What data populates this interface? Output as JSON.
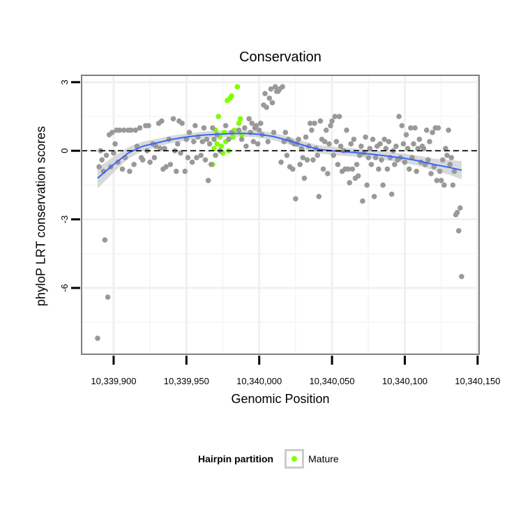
{
  "chart_data": {
    "type": "scatter",
    "title": "Conservation",
    "xlabel": "Genomic Position",
    "ylabel": "phyloP LRT conservation scores",
    "x_ticks": [
      10339900,
      10339950,
      10340000,
      10340050,
      10340100,
      10340150
    ],
    "x_tick_labels": [
      "10,339,900",
      "10,339,950",
      "10,340,000",
      "10,340,050",
      "10,340,100",
      "10,340,150"
    ],
    "y_ticks": [
      -6,
      -3,
      0,
      3
    ],
    "y_tick_labels": [
      "-6",
      "-3",
      "0",
      "3"
    ],
    "xlim": [
      10339878,
      10340151
    ],
    "ylim": [
      -8.9,
      3.3
    ],
    "grid": true,
    "reference_line": {
      "y": 0,
      "style": "dashed",
      "color": "#000000"
    },
    "legend": {
      "title": "Hairpin partition",
      "position": "bottom",
      "entries": [
        {
          "label": "Mature",
          "color": "#7fff00"
        }
      ]
    },
    "series": [
      {
        "name": "Mature",
        "color": "#7fff00",
        "points": [
          [
            10339970,
            0.9
          ],
          [
            10339972,
            1.5
          ],
          [
            10339973,
            0.6
          ],
          [
            10339971,
            0.3
          ],
          [
            10339969,
            0.1
          ],
          [
            10339968,
            -0.6
          ],
          [
            10339974,
            0.2
          ],
          [
            10339975,
            -0.1
          ],
          [
            10339976,
            0.8
          ],
          [
            10339977,
            0.4
          ],
          [
            10339978,
            2.2
          ],
          [
            10339979,
            0.0
          ],
          [
            10339980,
            2.3
          ],
          [
            10339981,
            2.4
          ],
          [
            10339982,
            0.6
          ],
          [
            10339983,
            0.9
          ],
          [
            10339985,
            2.8
          ],
          [
            10339986,
            1.2
          ],
          [
            10339987,
            1.4
          ],
          [
            10339988,
            0.7
          ]
        ]
      },
      {
        "name": "",
        "color": "#999999",
        "points": [
          [
            10339889,
            -8.2
          ],
          [
            10339890,
            -0.7
          ],
          [
            10339891,
            0.0
          ],
          [
            10339892,
            -0.4
          ],
          [
            10339893,
            -0.9
          ],
          [
            10339894,
            -3.9
          ],
          [
            10339895,
            -0.2
          ],
          [
            10339896,
            -6.4
          ],
          [
            10339897,
            0.7
          ],
          [
            10339898,
            -0.7
          ],
          [
            10339899,
            0.8
          ],
          [
            10339900,
            -0.1
          ],
          [
            10339901,
            0.3
          ],
          [
            10339902,
            0.9
          ],
          [
            10339903,
            -0.5
          ],
          [
            10339904,
            0.9
          ],
          [
            10339906,
            -0.8
          ],
          [
            10339907,
            0.9
          ],
          [
            10339908,
            -0.3
          ],
          [
            10339910,
            0.9
          ],
          [
            10339911,
            -0.9
          ],
          [
            10339912,
            0.9
          ],
          [
            10339914,
            -0.6
          ],
          [
            10339915,
            0.9
          ],
          [
            10339916,
            0.2
          ],
          [
            10339918,
            1.0
          ],
          [
            10339919,
            -0.3
          ],
          [
            10339920,
            -0.4
          ],
          [
            10339922,
            1.1
          ],
          [
            10339923,
            0.0
          ],
          [
            10339924,
            1.1
          ],
          [
            10339925,
            -0.5
          ],
          [
            10339927,
            0.3
          ],
          [
            10339928,
            -0.3
          ],
          [
            10339929,
            0.2
          ],
          [
            10339931,
            1.2
          ],
          [
            10339932,
            0.1
          ],
          [
            10339933,
            1.3
          ],
          [
            10339934,
            -0.8
          ],
          [
            10339935,
            0.1
          ],
          [
            10339936,
            -0.7
          ],
          [
            10339938,
            0.5
          ],
          [
            10339939,
            -0.6
          ],
          [
            10339941,
            1.4
          ],
          [
            10339942,
            0.0
          ],
          [
            10339943,
            -0.9
          ],
          [
            10339944,
            0.3
          ],
          [
            10339945,
            1.3
          ],
          [
            10339946,
            -0.1
          ],
          [
            10339947,
            1.2
          ],
          [
            10339949,
            -0.9
          ],
          [
            10339950,
            0.5
          ],
          [
            10339951,
            -0.3
          ],
          [
            10339952,
            0.8
          ],
          [
            10339954,
            -0.5
          ],
          [
            10339955,
            0.4
          ],
          [
            10339956,
            1.1
          ],
          [
            10339957,
            -0.3
          ],
          [
            10339958,
            0.6
          ],
          [
            10339960,
            -0.2
          ],
          [
            10339961,
            0.4
          ],
          [
            10339962,
            1.0
          ],
          [
            10339963,
            -0.4
          ],
          [
            10339964,
            0.5
          ],
          [
            10339965,
            -1.3
          ],
          [
            10339966,
            0.3
          ],
          [
            10339967,
            -0.6
          ],
          [
            10339968,
            1.0
          ],
          [
            10339969,
            0.5
          ],
          [
            10339970,
            -0.2
          ],
          [
            10339971,
            0.7
          ],
          [
            10339973,
            0.0
          ],
          [
            10339977,
            1.1
          ],
          [
            10339979,
            0.5
          ],
          [
            10339981,
            0.8
          ],
          [
            10339986,
            0.9
          ],
          [
            10339988,
            0.5
          ],
          [
            10339990,
            1.0
          ],
          [
            10339991,
            0.2
          ],
          [
            10339993,
            1.4
          ],
          [
            10339994,
            0.8
          ],
          [
            10339995,
            1.2
          ],
          [
            10339996,
            0.4
          ],
          [
            10339997,
            1.0
          ],
          [
            10339998,
            1.1
          ],
          [
            10339999,
            0.3
          ],
          [
            10340000,
            0.9
          ],
          [
            10340001,
            1.2
          ],
          [
            10340002,
            0.7
          ],
          [
            10340003,
            2.0
          ],
          [
            10340004,
            2.5
          ],
          [
            10340005,
            1.9
          ],
          [
            10340006,
            0.4
          ],
          [
            10340007,
            2.3
          ],
          [
            10340008,
            2.7
          ],
          [
            10340009,
            2.1
          ],
          [
            10340010,
            0.8
          ],
          [
            10340011,
            2.8
          ],
          [
            10340012,
            2.6
          ],
          [
            10340013,
            2.6
          ],
          [
            10340014,
            2.7
          ],
          [
            10340015,
            -0.5
          ],
          [
            10340016,
            2.8
          ],
          [
            10340017,
            0.4
          ],
          [
            10340018,
            0.8
          ],
          [
            10340019,
            -0.2
          ],
          [
            10340020,
            0.5
          ],
          [
            10340021,
            -0.7
          ],
          [
            10340022,
            0.4
          ],
          [
            10340023,
            -0.8
          ],
          [
            10340024,
            0.3
          ],
          [
            10340025,
            -2.1
          ],
          [
            10340026,
            0.3
          ],
          [
            10340027,
            0.5
          ],
          [
            10340028,
            -0.6
          ],
          [
            10340029,
            0.1
          ],
          [
            10340030,
            -0.3
          ],
          [
            10340031,
            -1.2
          ],
          [
            10340032,
            0.6
          ],
          [
            10340033,
            -0.4
          ],
          [
            10340034,
            0.2
          ],
          [
            10340035,
            1.2
          ],
          [
            10340036,
            0.9
          ],
          [
            10340037,
            -0.4
          ],
          [
            10340038,
            1.2
          ],
          [
            10340039,
            0.1
          ],
          [
            10340040,
            -0.2
          ],
          [
            10340041,
            -2.0
          ],
          [
            10340042,
            1.3
          ],
          [
            10340043,
            0.5
          ],
          [
            10340044,
            -0.8
          ],
          [
            10340045,
            0.4
          ],
          [
            10340046,
            0.9
          ],
          [
            10340047,
            -1.0
          ],
          [
            10340048,
            0.3
          ],
          [
            10340049,
            1.1
          ],
          [
            10340050,
            1.3
          ],
          [
            10340051,
            -0.2
          ],
          [
            10340052,
            1.5
          ],
          [
            10340053,
            0.4
          ],
          [
            10340054,
            -0.6
          ],
          [
            10340055,
            1.5
          ],
          [
            10340056,
            0.2
          ],
          [
            10340057,
            -0.9
          ],
          [
            10340058,
            0.0
          ],
          [
            10340059,
            -0.8
          ],
          [
            10340060,
            0.9
          ],
          [
            10340061,
            -0.8
          ],
          [
            10340062,
            -1.4
          ],
          [
            10340063,
            0.3
          ],
          [
            10340064,
            -0.8
          ],
          [
            10340065,
            0.5
          ],
          [
            10340066,
            -1.2
          ],
          [
            10340067,
            -0.6
          ],
          [
            10340068,
            -1.1
          ],
          [
            10340069,
            -0.2
          ],
          [
            10340070,
            0.2
          ],
          [
            10340071,
            -2.2
          ],
          [
            10340072,
            -0.1
          ],
          [
            10340073,
            0.6
          ],
          [
            10340074,
            -1.5
          ],
          [
            10340075,
            -0.3
          ],
          [
            10340076,
            0.1
          ],
          [
            10340077,
            -0.6
          ],
          [
            10340078,
            0.5
          ],
          [
            10340079,
            -2.0
          ],
          [
            10340080,
            -0.3
          ],
          [
            10340081,
            0.2
          ],
          [
            10340082,
            -0.8
          ],
          [
            10340083,
            0.3
          ],
          [
            10340084,
            -0.4
          ],
          [
            10340085,
            -1.5
          ],
          [
            10340086,
            0.5
          ],
          [
            10340087,
            0.1
          ],
          [
            10340088,
            -0.8
          ],
          [
            10340089,
            0.4
          ],
          [
            10340090,
            -0.3
          ],
          [
            10340091,
            -1.9
          ],
          [
            10340092,
            0.0
          ],
          [
            10340093,
            -0.6
          ],
          [
            10340094,
            0.2
          ],
          [
            10340095,
            -0.4
          ],
          [
            10340096,
            1.5
          ],
          [
            10340097,
            -0.3
          ],
          [
            10340098,
            1.1
          ],
          [
            10340099,
            0.3
          ],
          [
            10340100,
            -0.5
          ],
          [
            10340101,
            0.7
          ],
          [
            10340102,
            0.1
          ],
          [
            10340103,
            -0.8
          ],
          [
            10340104,
            1.0
          ],
          [
            10340105,
            -0.3
          ],
          [
            10340106,
            0.3
          ],
          [
            10340107,
            1.0
          ],
          [
            10340108,
            -0.9
          ],
          [
            10340109,
            0.1
          ],
          [
            10340110,
            0.5
          ],
          [
            10340111,
            -0.5
          ],
          [
            10340112,
            0.2
          ],
          [
            10340113,
            0.1
          ],
          [
            10340114,
            -0.6
          ],
          [
            10340115,
            0.9
          ],
          [
            10340116,
            -0.4
          ],
          [
            10340117,
            0.4
          ],
          [
            10340118,
            -1.0
          ],
          [
            10340119,
            0.8
          ],
          [
            10340120,
            -0.7
          ],
          [
            10340121,
            1.0
          ],
          [
            10340122,
            -1.3
          ],
          [
            10340123,
            1.0
          ],
          [
            10340124,
            -0.9
          ],
          [
            10340125,
            -1.3
          ],
          [
            10340126,
            -0.4
          ],
          [
            10340127,
            -1.5
          ],
          [
            10340128,
            0.1
          ],
          [
            10340129,
            -0.2
          ],
          [
            10340130,
            0.9
          ],
          [
            10340131,
            -0.6
          ],
          [
            10340132,
            -0.3
          ],
          [
            10340133,
            -1.5
          ],
          [
            10340134,
            -0.9
          ],
          [
            10340135,
            -2.8
          ],
          [
            10340136,
            -2.7
          ],
          [
            10340137,
            -3.5
          ],
          [
            10340138,
            -2.5
          ],
          [
            10340139,
            -5.5
          ]
        ]
      }
    ],
    "smooth": {
      "color": "#3366ff",
      "band_color": "#cccccc",
      "points": [
        [
          10339889,
          -1.2
        ],
        [
          10339900,
          -0.6
        ],
        [
          10339910,
          -0.1
        ],
        [
          10339920,
          0.2
        ],
        [
          10339930,
          0.35
        ],
        [
          10339940,
          0.5
        ],
        [
          10339950,
          0.6
        ],
        [
          10339960,
          0.68
        ],
        [
          10339970,
          0.72
        ],
        [
          10339980,
          0.75
        ],
        [
          10339990,
          0.76
        ],
        [
          10340000,
          0.72
        ],
        [
          10340010,
          0.62
        ],
        [
          10340020,
          0.45
        ],
        [
          10340030,
          0.25
        ],
        [
          10340040,
          0.07
        ],
        [
          10340050,
          0.0
        ],
        [
          10340060,
          -0.05
        ],
        [
          10340070,
          -0.1
        ],
        [
          10340080,
          -0.17
        ],
        [
          10340090,
          -0.25
        ],
        [
          10340100,
          -0.33
        ],
        [
          10340110,
          -0.45
        ],
        [
          10340120,
          -0.6
        ],
        [
          10340130,
          -0.72
        ],
        [
          10340139,
          -0.85
        ]
      ],
      "band_halfwidth": [
        0.45,
        0.35,
        0.25,
        0.2,
        0.18,
        0.16,
        0.15,
        0.15,
        0.15,
        0.15,
        0.15,
        0.15,
        0.16,
        0.17,
        0.18,
        0.18,
        0.18,
        0.18,
        0.18,
        0.18,
        0.19,
        0.2,
        0.22,
        0.26,
        0.32,
        0.4
      ]
    }
  }
}
